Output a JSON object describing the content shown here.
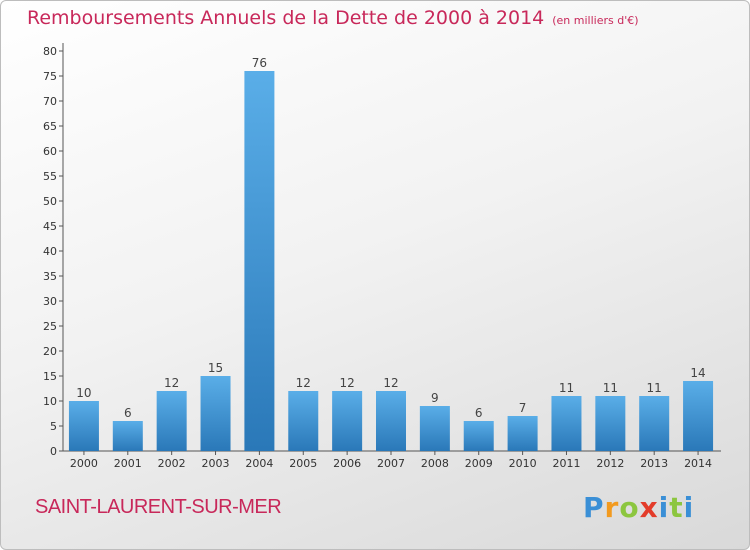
{
  "header": {
    "title": "Remboursements Annuels de la Dette de 2000 à 2014",
    "unit": "(en milliers d'€)"
  },
  "footer": {
    "town": "SAINT-LAURENT-SUR-MER",
    "logo": "Proxiti"
  },
  "colors": {
    "title": "#c8285a",
    "bar_light": "#5aaee8",
    "bar_dark": "#2a78b8"
  },
  "chart_data": {
    "type": "bar",
    "title": "Remboursements Annuels de la Dette de 2000 à 2014",
    "xlabel": "",
    "ylabel": "",
    "categories": [
      "2000",
      "2001",
      "2002",
      "2003",
      "2004",
      "2005",
      "2006",
      "2007",
      "2008",
      "2009",
      "2010",
      "2011",
      "2012",
      "2013",
      "2014"
    ],
    "values": [
      10,
      6,
      12,
      15,
      76,
      12,
      12,
      12,
      9,
      6,
      7,
      11,
      11,
      11,
      14
    ],
    "ylim": [
      0,
      80
    ],
    "yticks": [
      0,
      5,
      10,
      15,
      20,
      25,
      30,
      35,
      40,
      45,
      50,
      55,
      60,
      65,
      70,
      75,
      80
    ],
    "data_labels": true,
    "grid": false
  }
}
